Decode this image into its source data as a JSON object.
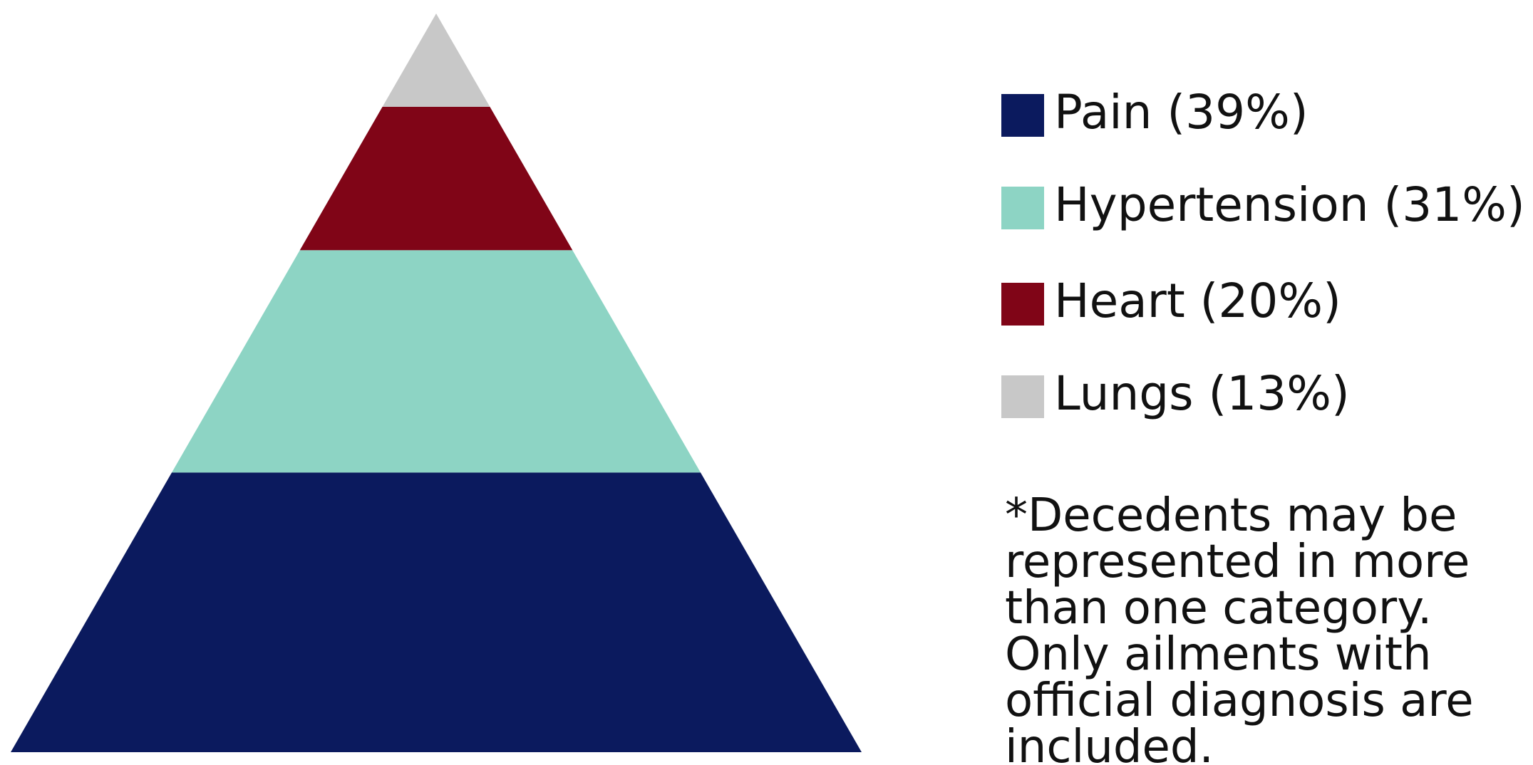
{
  "chart_data": {
    "type": "pyramid",
    "categories": [
      "Pain (39%)",
      "Hypertension (31%)",
      "Heart (20%)",
      "Lungs (13%)"
    ],
    "values": [
      39,
      31,
      20,
      13
    ],
    "colors": [
      "#0b1a5e",
      "#8dd4c4",
      "#800517",
      "#c8c8c8"
    ],
    "note": [
      "*Decedents may be",
      "represented in more",
      "than one category.",
      "Only ailments with",
      "official diagnosis are",
      "included."
    ]
  }
}
